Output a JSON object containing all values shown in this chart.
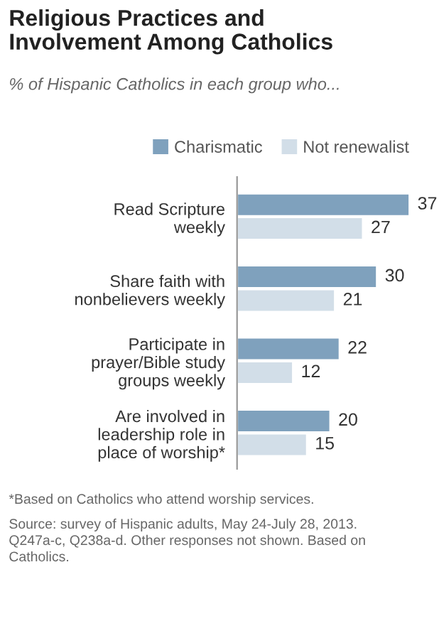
{
  "chart_data": {
    "type": "bar",
    "orientation": "horizontal",
    "title": "Religious Practices and Involvement Among Catholics",
    "subtitle": "% of Hispanic Catholics in each group who...",
    "categories": [
      "Read Scripture weekly",
      "Share faith with nonbelievers weekly",
      "Participate in prayer/Bible study groups weekly",
      "Are involved in leadership role in place of worship*"
    ],
    "series": [
      {
        "name": "Charismatic",
        "color": "#7fa1bd",
        "values": [
          37,
          30,
          22,
          20
        ]
      },
      {
        "name": "Not renewalist",
        "color": "#d2dee8",
        "values": [
          27,
          21,
          12,
          15
        ]
      }
    ],
    "data_labels": true,
    "legend": "top",
    "grid": false,
    "annotations": [
      "*Based on Catholics who attend worship services.",
      "Source: survey of Hispanic adults, May 24-July 28, 2013. Q247a-c, Q238a-d. Other responses not shown. Based on Catholics."
    ]
  }
}
